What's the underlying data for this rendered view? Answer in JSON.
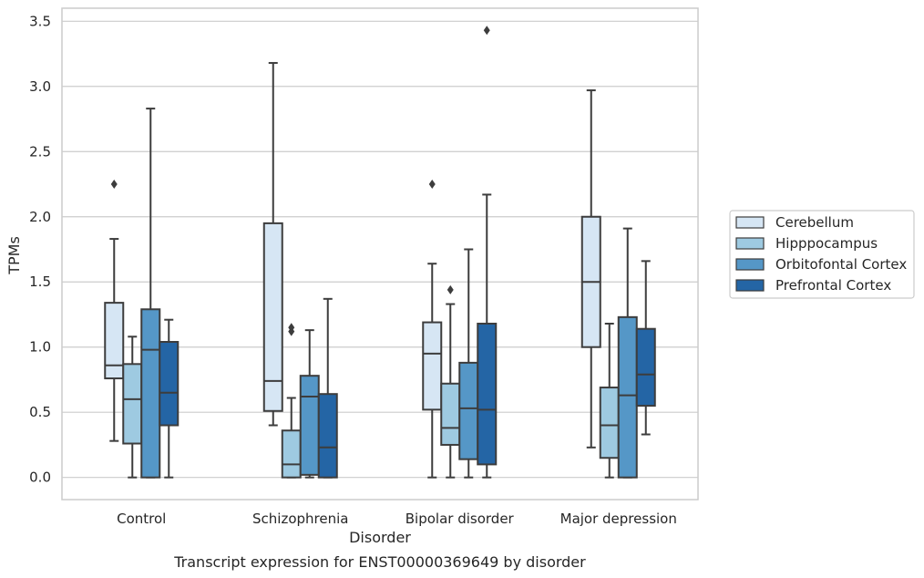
{
  "chart_data": {
    "type": "boxplot",
    "title": "",
    "caption": "Transcript expression for ENST00000369649 by disorder",
    "xlabel": "Disorder",
    "ylabel": "TPMs",
    "ylim": [
      -0.17,
      3.6
    ],
    "yticks": [
      0.0,
      0.5,
      1.0,
      1.5,
      2.0,
      2.5,
      3.0,
      3.5
    ],
    "ytick_labels": [
      "0.0",
      "0.5",
      "1.0",
      "1.5",
      "2.0",
      "2.5",
      "3.0",
      "3.5"
    ],
    "grid": "horizontal",
    "legend_position": "right, outside plot",
    "categories": [
      "Control",
      "Schizophrenia",
      "Bipolar disorder",
      "Major depression"
    ],
    "series": [
      {
        "name": "Cerebellum",
        "color": "#d6e6f4",
        "boxes": [
          {
            "whisker_low": 0.28,
            "q1": 0.76,
            "median": 0.86,
            "q3": 1.34,
            "whisker_high": 1.83,
            "outliers": [
              2.25
            ]
          },
          {
            "whisker_low": 0.4,
            "q1": 0.51,
            "median": 0.74,
            "q3": 1.95,
            "whisker_high": 3.18,
            "outliers": []
          },
          {
            "whisker_low": 0.0,
            "q1": 0.52,
            "median": 0.95,
            "q3": 1.19,
            "whisker_high": 1.64,
            "outliers": [
              2.25
            ]
          },
          {
            "whisker_low": 0.23,
            "q1": 1.0,
            "median": 1.5,
            "q3": 2.0,
            "whisker_high": 2.97,
            "outliers": []
          }
        ]
      },
      {
        "name": "Hipppocampus",
        "color": "#9ecae1",
        "boxes": [
          {
            "whisker_low": 0.0,
            "q1": 0.26,
            "median": 0.6,
            "q3": 0.87,
            "whisker_high": 1.08,
            "outliers": []
          },
          {
            "whisker_low": 0.0,
            "q1": 0.0,
            "median": 0.1,
            "q3": 0.36,
            "whisker_high": 0.61,
            "outliers": [
              1.12,
              1.15
            ]
          },
          {
            "whisker_low": 0.0,
            "q1": 0.25,
            "median": 0.38,
            "q3": 0.72,
            "whisker_high": 1.33,
            "outliers": [
              1.44
            ]
          },
          {
            "whisker_low": 0.0,
            "q1": 0.15,
            "median": 0.4,
            "q3": 0.69,
            "whisker_high": 1.18,
            "outliers": []
          }
        ]
      },
      {
        "name": "Orbitofontal Cortex",
        "color": "#5597c7",
        "boxes": [
          {
            "whisker_low": 0.0,
            "q1": 0.0,
            "median": 0.98,
            "q3": 1.29,
            "whisker_high": 2.83,
            "outliers": []
          },
          {
            "whisker_low": 0.0,
            "q1": 0.02,
            "median": 0.62,
            "q3": 0.78,
            "whisker_high": 1.13,
            "outliers": []
          },
          {
            "whisker_low": 0.0,
            "q1": 0.14,
            "median": 0.53,
            "q3": 0.88,
            "whisker_high": 1.75,
            "outliers": []
          },
          {
            "whisker_low": 0.0,
            "q1": 0.0,
            "median": 0.63,
            "q3": 1.23,
            "whisker_high": 1.91,
            "outliers": []
          }
        ]
      },
      {
        "name": "Prefrontal Cortex",
        "color": "#2465a5",
        "boxes": [
          {
            "whisker_low": 0.0,
            "q1": 0.4,
            "median": 0.65,
            "q3": 1.04,
            "whisker_high": 1.21,
            "outliers": []
          },
          {
            "whisker_low": 0.0,
            "q1": 0.0,
            "median": 0.23,
            "q3": 0.64,
            "whisker_high": 1.37,
            "outliers": []
          },
          {
            "whisker_low": 0.0,
            "q1": 0.1,
            "median": 0.52,
            "q3": 1.18,
            "whisker_high": 2.17,
            "outliers": [
              3.43
            ]
          },
          {
            "whisker_low": 0.33,
            "q1": 0.55,
            "median": 0.79,
            "q3": 1.14,
            "whisker_high": 1.66,
            "outliers": []
          }
        ]
      }
    ]
  }
}
